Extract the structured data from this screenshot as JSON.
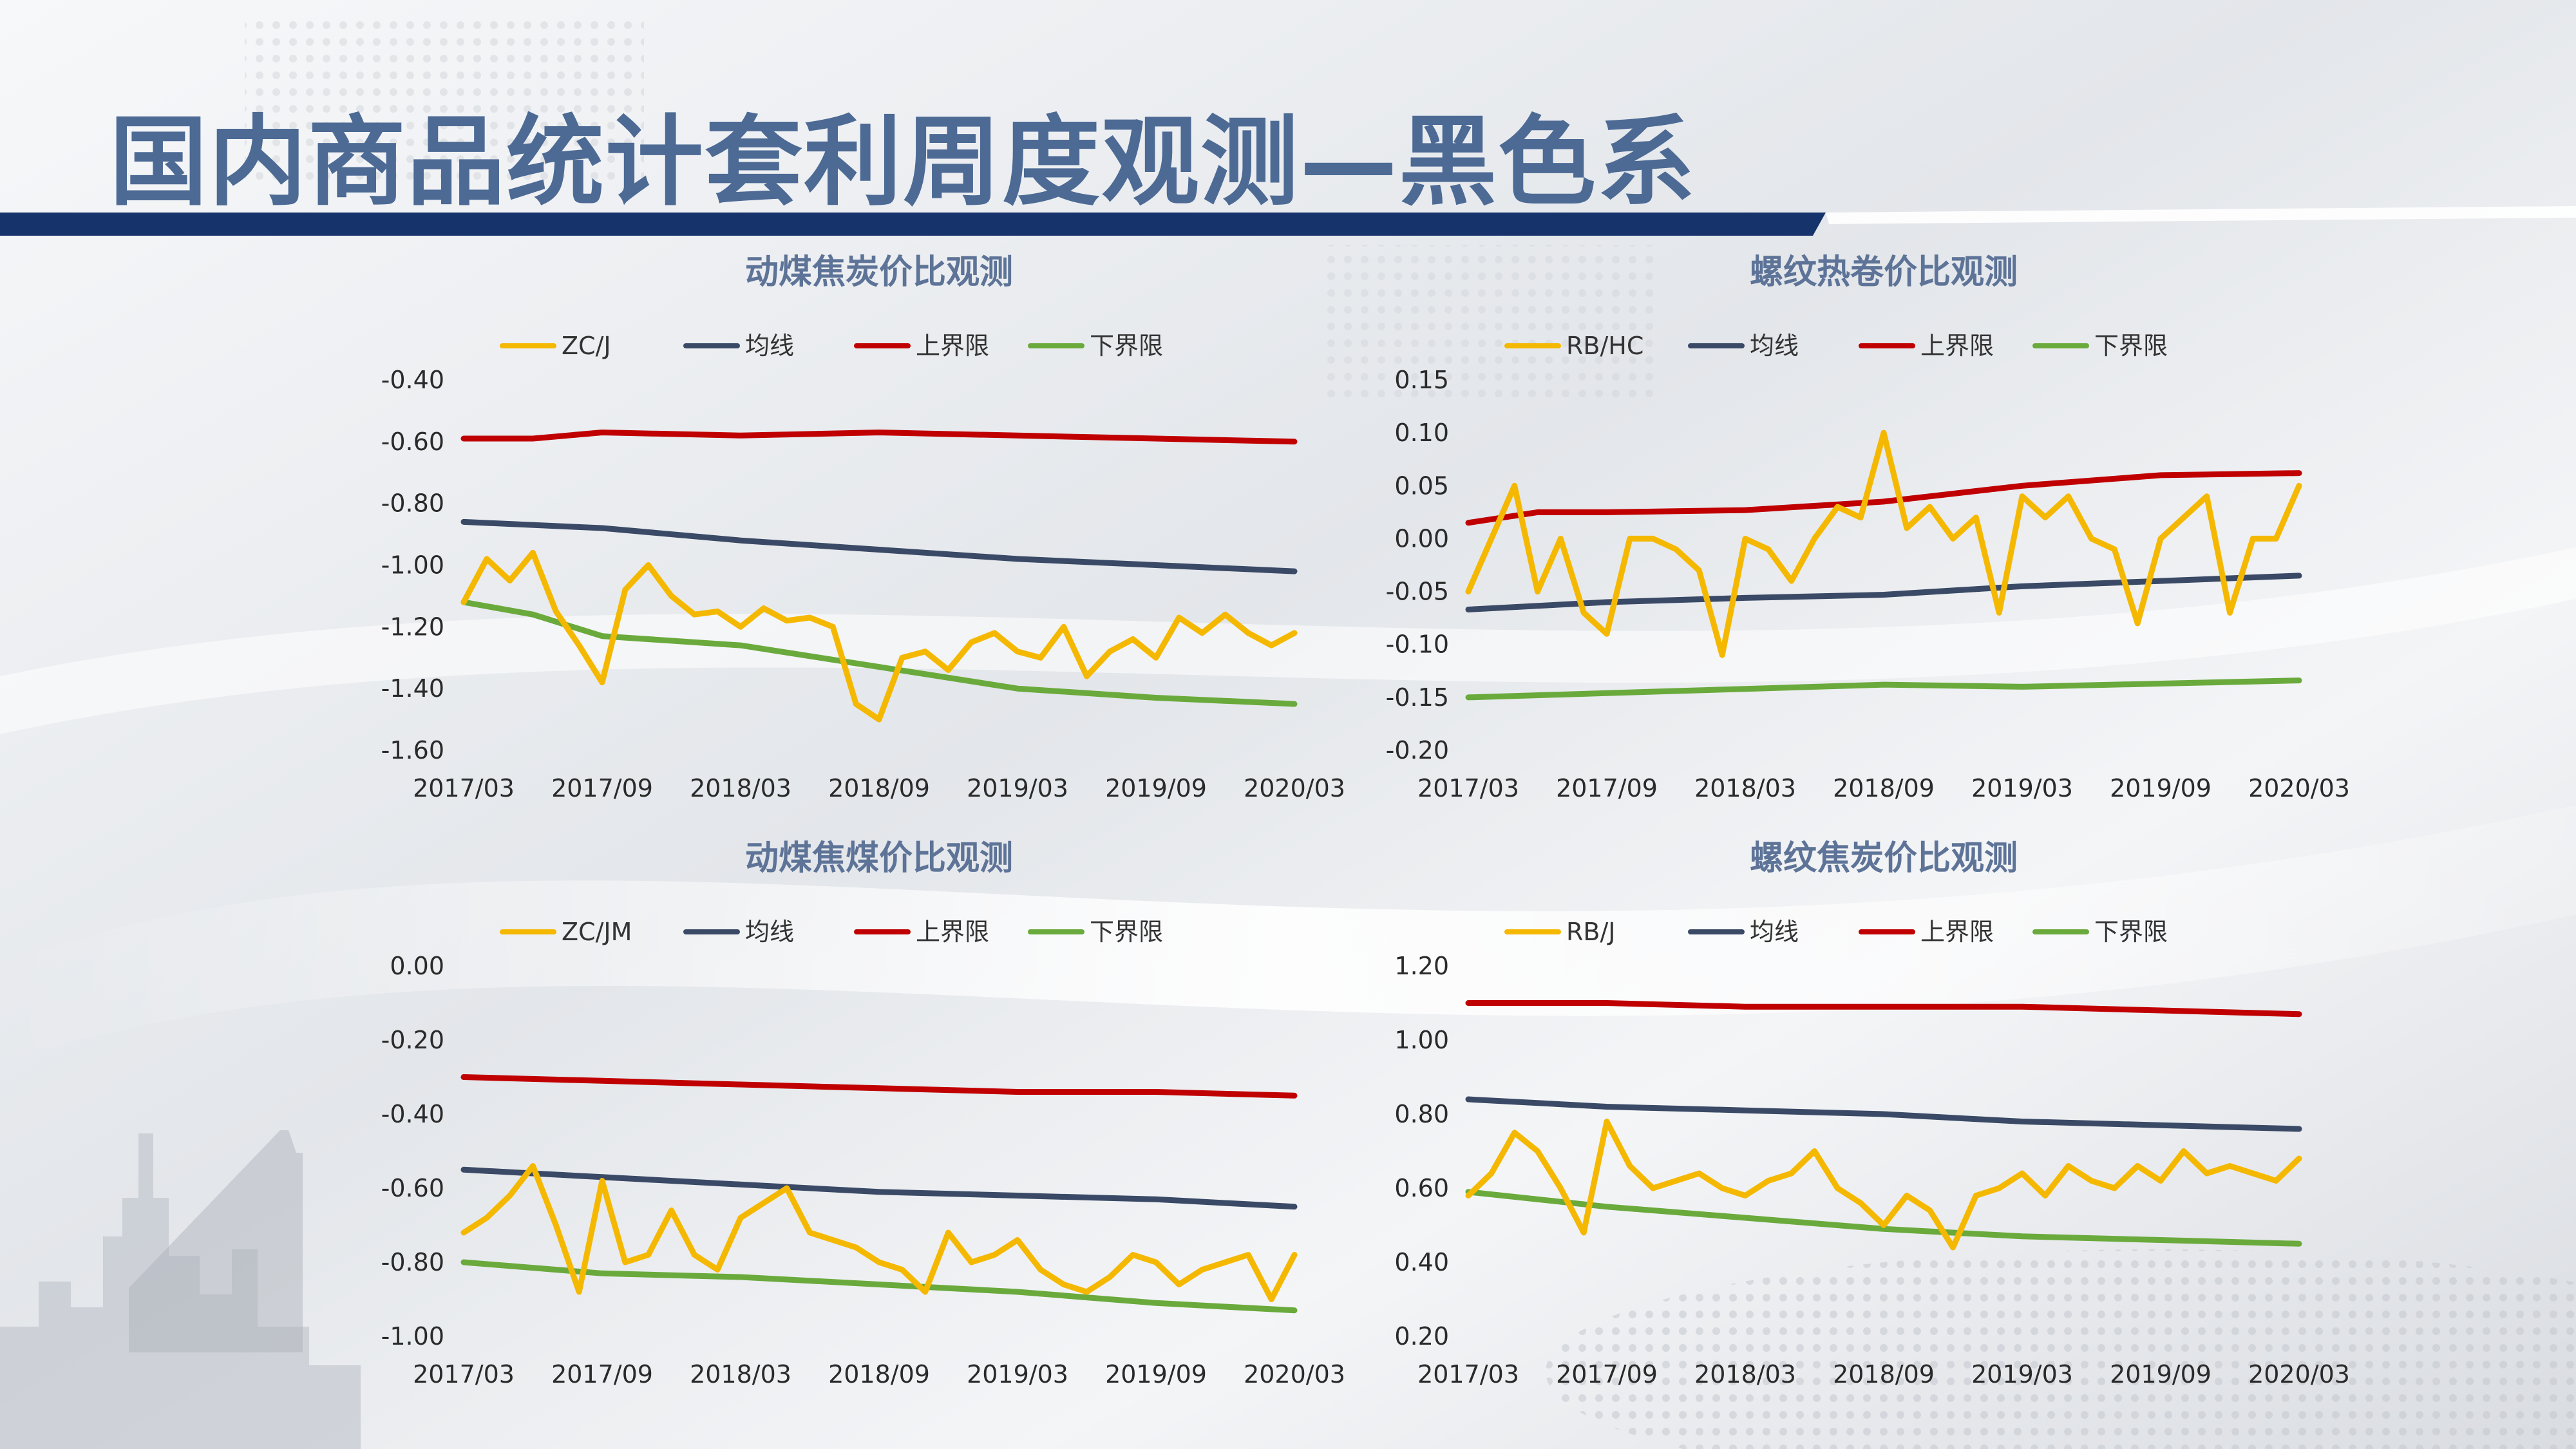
{
  "slide": {
    "title": "国内商品统计套利周度观测—黑色系",
    "accent_color": "#16336b",
    "title_color": "#4c6a94"
  },
  "series_colors": {
    "ratio": "#f5b800",
    "mean": "#3a4a66",
    "upper": "#c00000",
    "lower": "#6aaa3c"
  },
  "chart_data": [
    {
      "type": "line",
      "title": "动煤焦炭价比观测",
      "legend": [
        "ZC/J",
        "均线",
        "上界限",
        "下界限"
      ],
      "legend_position": "top",
      "x_ticks": [
        "2017/03",
        "2017/09",
        "2018/03",
        "2018/09",
        "2019/03",
        "2019/09",
        "2020/03"
      ],
      "x_range": [
        "2017/03",
        "2020/03"
      ],
      "y_ticks": [
        "-0.40",
        "-0.60",
        "-0.80",
        "-1.00",
        "-1.20",
        "-1.40",
        "-1.60"
      ],
      "ylim": [
        -1.6,
        -0.4
      ],
      "grid": false,
      "series": [
        {
          "name": "ZC/J",
          "x": [
            "2017/03",
            "2017/04",
            "2017/05",
            "2017/06",
            "2017/07",
            "2017/08",
            "2017/09",
            "2017/10",
            "2017/11",
            "2017/12",
            "2018/01",
            "2018/02",
            "2018/03",
            "2018/04",
            "2018/05",
            "2018/06",
            "2018/07",
            "2018/08",
            "2018/09",
            "2018/10",
            "2018/11",
            "2018/12",
            "2019/01",
            "2019/02",
            "2019/03",
            "2019/04",
            "2019/05",
            "2019/06",
            "2019/07",
            "2019/08",
            "2019/09",
            "2019/10",
            "2019/11",
            "2019/12",
            "2020/01",
            "2020/02",
            "2020/03"
          ],
          "values": [
            -1.12,
            -0.98,
            -1.05,
            -0.96,
            -1.15,
            -1.26,
            -1.38,
            -1.08,
            -1.0,
            -1.1,
            -1.16,
            -1.15,
            -1.2,
            -1.14,
            -1.18,
            -1.17,
            -1.2,
            -1.45,
            -1.5,
            -1.3,
            -1.28,
            -1.34,
            -1.25,
            -1.22,
            -1.28,
            -1.3,
            -1.2,
            -1.36,
            -1.28,
            -1.24,
            -1.3,
            -1.17,
            -1.22,
            -1.16,
            -1.22,
            -1.26,
            -1.22
          ]
        },
        {
          "name": "均线",
          "x": [
            "2017/03",
            "2017/09",
            "2018/03",
            "2018/09",
            "2019/03",
            "2019/09",
            "2020/03"
          ],
          "values": [
            -0.86,
            -0.88,
            -0.92,
            -0.95,
            -0.98,
            -1.0,
            -1.02
          ]
        },
        {
          "name": "上界限",
          "x": [
            "2017/03",
            "2017/06",
            "2017/09",
            "2018/03",
            "2018/09",
            "2019/03",
            "2019/09",
            "2020/03"
          ],
          "values": [
            -0.59,
            -0.59,
            -0.57,
            -0.58,
            -0.57,
            -0.58,
            -0.59,
            -0.6
          ]
        },
        {
          "name": "下界限",
          "x": [
            "2017/03",
            "2017/06",
            "2017/09",
            "2018/03",
            "2018/09",
            "2019/03",
            "2019/09",
            "2020/03"
          ],
          "values": [
            -1.12,
            -1.16,
            -1.23,
            -1.26,
            -1.33,
            -1.4,
            -1.43,
            -1.45
          ]
        }
      ]
    },
    {
      "type": "line",
      "title": "螺纹热卷价比观测",
      "legend": [
        "RB/HC",
        "均线",
        "上界限",
        "下界限"
      ],
      "legend_position": "top",
      "x_ticks": [
        "2017/03",
        "2017/09",
        "2018/03",
        "2018/09",
        "2019/03",
        "2019/09",
        "2020/03"
      ],
      "x_range": [
        "2017/03",
        "2020/03"
      ],
      "y_ticks": [
        "0.15",
        "0.10",
        "0.05",
        "0.00",
        "-0.05",
        "-0.10",
        "-0.15",
        "-0.20"
      ],
      "ylim": [
        -0.2,
        0.15
      ],
      "grid": false,
      "series": [
        {
          "name": "RB/HC",
          "x": [
            "2017/03",
            "2017/04",
            "2017/05",
            "2017/06",
            "2017/07",
            "2017/08",
            "2017/09",
            "2017/10",
            "2017/11",
            "2017/12",
            "2018/01",
            "2018/02",
            "2018/03",
            "2018/04",
            "2018/05",
            "2018/06",
            "2018/07",
            "2018/08",
            "2018/09",
            "2018/10",
            "2018/11",
            "2018/12",
            "2019/01",
            "2019/02",
            "2019/03",
            "2019/04",
            "2019/05",
            "2019/06",
            "2019/07",
            "2019/08",
            "2019/09",
            "2019/10",
            "2019/11",
            "2019/12",
            "2020/01",
            "2020/02",
            "2020/03"
          ],
          "values": [
            -0.05,
            0.0,
            0.05,
            -0.05,
            0.0,
            -0.07,
            -0.09,
            0.0,
            0.0,
            -0.01,
            -0.03,
            -0.11,
            0.0,
            -0.01,
            -0.04,
            0.0,
            0.03,
            0.02,
            0.1,
            0.01,
            0.03,
            0.0,
            0.02,
            -0.07,
            0.04,
            0.02,
            0.04,
            0.0,
            -0.01,
            -0.08,
            0.0,
            0.02,
            0.04,
            -0.07,
            0.0,
            0.0,
            0.05
          ]
        },
        {
          "name": "均线",
          "x": [
            "2017/03",
            "2017/09",
            "2018/03",
            "2018/09",
            "2019/03",
            "2019/09",
            "2020/03"
          ],
          "values": [
            -0.067,
            -0.06,
            -0.056,
            -0.053,
            -0.045,
            -0.04,
            -0.035
          ]
        },
        {
          "name": "上界限",
          "x": [
            "2017/03",
            "2017/06",
            "2017/09",
            "2018/03",
            "2018/09",
            "2019/03",
            "2019/09",
            "2020/03"
          ],
          "values": [
            0.015,
            0.025,
            0.025,
            0.027,
            0.035,
            0.05,
            0.06,
            0.062
          ]
        },
        {
          "name": "下界限",
          "x": [
            "2017/03",
            "2017/09",
            "2018/03",
            "2018/09",
            "2019/03",
            "2019/09",
            "2020/03"
          ],
          "values": [
            -0.15,
            -0.146,
            -0.142,
            -0.138,
            -0.14,
            -0.137,
            -0.134
          ]
        }
      ]
    },
    {
      "type": "line",
      "title": "动煤焦煤价比观测",
      "legend": [
        "ZC/JM",
        "均线",
        "上界限",
        "下界限"
      ],
      "legend_position": "top",
      "x_ticks": [
        "2017/03",
        "2017/09",
        "2018/03",
        "2018/09",
        "2019/03",
        "2019/09",
        "2020/03"
      ],
      "x_range": [
        "2017/03",
        "2020/03"
      ],
      "y_ticks": [
        "0.00",
        "-0.20",
        "-0.40",
        "-0.60",
        "-0.80",
        "-1.00"
      ],
      "ylim": [
        -1.0,
        0.0
      ],
      "grid": false,
      "series": [
        {
          "name": "ZC/JM",
          "x": [
            "2017/03",
            "2017/04",
            "2017/05",
            "2017/06",
            "2017/07",
            "2017/08",
            "2017/09",
            "2017/10",
            "2017/11",
            "2017/12",
            "2018/01",
            "2018/02",
            "2018/03",
            "2018/04",
            "2018/05",
            "2018/06",
            "2018/07",
            "2018/08",
            "2018/09",
            "2018/10",
            "2018/11",
            "2018/12",
            "2019/01",
            "2019/02",
            "2019/03",
            "2019/04",
            "2019/05",
            "2019/06",
            "2019/07",
            "2019/08",
            "2019/09",
            "2019/10",
            "2019/11",
            "2019/12",
            "2020/01",
            "2020/02",
            "2020/03"
          ],
          "values": [
            -0.72,
            -0.68,
            -0.62,
            -0.54,
            -0.7,
            -0.88,
            -0.58,
            -0.8,
            -0.78,
            -0.66,
            -0.78,
            -0.82,
            -0.68,
            -0.64,
            -0.6,
            -0.72,
            -0.74,
            -0.76,
            -0.8,
            -0.82,
            -0.88,
            -0.72,
            -0.8,
            -0.78,
            -0.74,
            -0.82,
            -0.86,
            -0.88,
            -0.84,
            -0.78,
            -0.8,
            -0.86,
            -0.82,
            -0.8,
            -0.78,
            -0.9,
            -0.78
          ]
        },
        {
          "name": "均线",
          "x": [
            "2017/03",
            "2017/09",
            "2018/03",
            "2018/09",
            "2019/03",
            "2019/09",
            "2020/03"
          ],
          "values": [
            -0.55,
            -0.57,
            -0.59,
            -0.61,
            -0.62,
            -0.63,
            -0.65
          ]
        },
        {
          "name": "上界限",
          "x": [
            "2017/03",
            "2017/09",
            "2018/03",
            "2018/09",
            "2019/03",
            "2019/09",
            "2020/03"
          ],
          "values": [
            -0.3,
            -0.31,
            -0.32,
            -0.33,
            -0.34,
            -0.34,
            -0.35
          ]
        },
        {
          "name": "下界限",
          "x": [
            "2017/03",
            "2017/09",
            "2018/03",
            "2018/09",
            "2019/03",
            "2019/09",
            "2020/03"
          ],
          "values": [
            -0.8,
            -0.83,
            -0.84,
            -0.86,
            -0.88,
            -0.91,
            -0.93
          ]
        }
      ]
    },
    {
      "type": "line",
      "title": "螺纹焦炭价比观测",
      "legend": [
        "RB/J",
        "均线",
        "上界限",
        "下界限"
      ],
      "legend_position": "top",
      "x_ticks": [
        "2017/03",
        "2017/09",
        "2018/03",
        "2018/09",
        "2019/03",
        "2019/09",
        "2020/03"
      ],
      "x_range": [
        "2017/03",
        "2020/03"
      ],
      "y_ticks": [
        "1.20",
        "1.00",
        "0.80",
        "0.60",
        "0.40",
        "0.20"
      ],
      "ylim": [
        0.2,
        1.2
      ],
      "grid": false,
      "series": [
        {
          "name": "RB/J",
          "x": [
            "2017/03",
            "2017/04",
            "2017/05",
            "2017/06",
            "2017/07",
            "2017/08",
            "2017/09",
            "2017/10",
            "2017/11",
            "2017/12",
            "2018/01",
            "2018/02",
            "2018/03",
            "2018/04",
            "2018/05",
            "2018/06",
            "2018/07",
            "2018/08",
            "2018/09",
            "2018/10",
            "2018/11",
            "2018/12",
            "2019/01",
            "2019/02",
            "2019/03",
            "2019/04",
            "2019/05",
            "2019/06",
            "2019/07",
            "2019/08",
            "2019/09",
            "2019/10",
            "2019/11",
            "2019/12",
            "2020/01",
            "2020/02",
            "2020/03"
          ],
          "values": [
            0.58,
            0.64,
            0.75,
            0.7,
            0.6,
            0.48,
            0.78,
            0.66,
            0.6,
            0.62,
            0.64,
            0.6,
            0.58,
            0.62,
            0.64,
            0.7,
            0.6,
            0.56,
            0.5,
            0.58,
            0.54,
            0.44,
            0.58,
            0.6,
            0.64,
            0.58,
            0.66,
            0.62,
            0.6,
            0.66,
            0.62,
            0.7,
            0.64,
            0.66,
            0.64,
            0.62,
            0.68
          ]
        },
        {
          "name": "均线",
          "x": [
            "2017/03",
            "2017/09",
            "2018/03",
            "2018/09",
            "2019/03",
            "2019/09",
            "2020/03"
          ],
          "values": [
            0.84,
            0.82,
            0.81,
            0.8,
            0.78,
            0.77,
            0.76
          ]
        },
        {
          "name": "上界限",
          "x": [
            "2017/03",
            "2017/09",
            "2018/03",
            "2018/09",
            "2019/03",
            "2019/09",
            "2020/03"
          ],
          "values": [
            1.1,
            1.1,
            1.09,
            1.09,
            1.09,
            1.08,
            1.07
          ]
        },
        {
          "name": "下界限",
          "x": [
            "2017/03",
            "2017/09",
            "2018/03",
            "2018/09",
            "2019/03",
            "2019/09",
            "2020/03"
          ],
          "values": [
            0.59,
            0.55,
            0.52,
            0.49,
            0.47,
            0.46,
            0.45
          ]
        }
      ]
    }
  ]
}
